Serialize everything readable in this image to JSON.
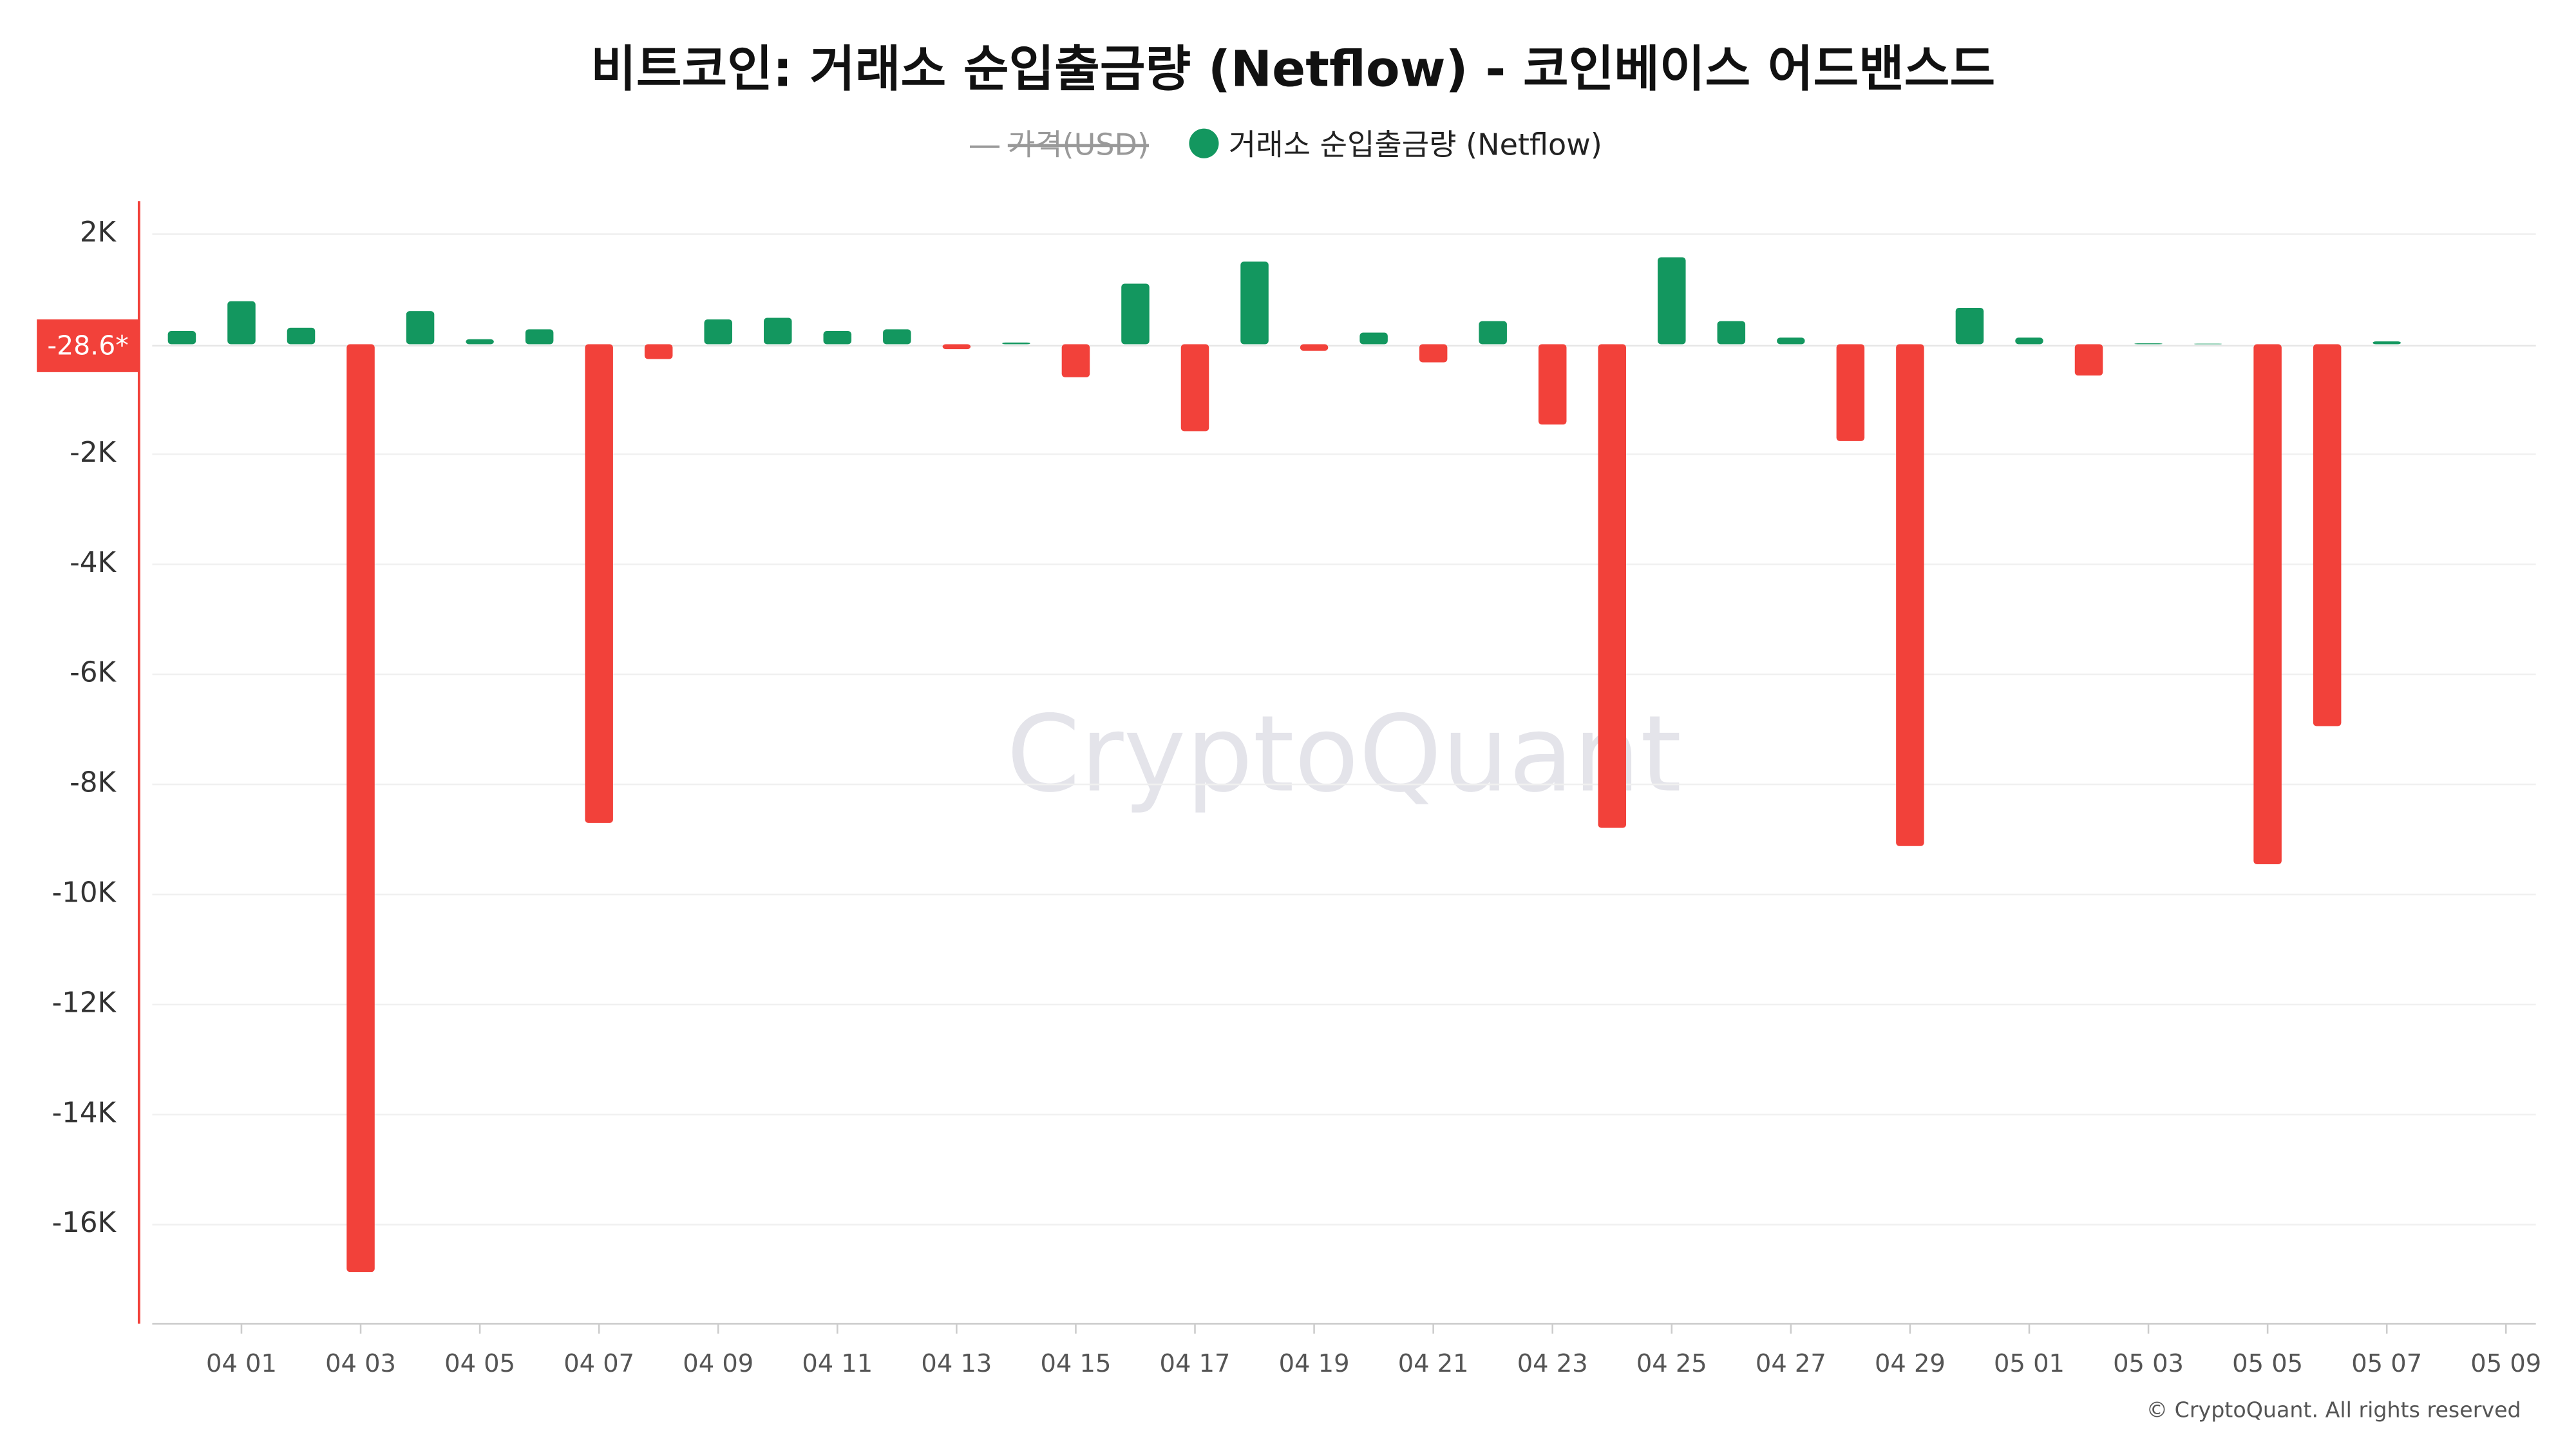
{
  "chart_data": {
    "type": "bar",
    "title": "비트코인: 거래소 순입출금량 (Netflow) - 코인베이스 어드밴스드",
    "hidden_series": [
      {
        "name": "가격(USD)"
      }
    ],
    "categories": [
      null,
      "04 01",
      null,
      "04 03",
      null,
      "04 05",
      null,
      "04 07",
      null,
      "04 09",
      null,
      "04 11",
      null,
      "04 13",
      null,
      "04 15",
      null,
      "04 17",
      null,
      "04 19",
      null,
      "04 21",
      null,
      "04 23",
      null,
      "04 25",
      null,
      "04 27",
      null,
      "04 29",
      null,
      "05 01",
      null,
      "05 03",
      null,
      "05 05",
      null,
      "05 07",
      null,
      "05 09"
    ],
    "series": [
      {
        "name": "거래소 순입출금량 (Netflow)",
        "color": "#13975f",
        "negative_color": "#f2413a",
        "values": [
          240,
          780,
          300,
          -16860,
          600,
          90,
          270,
          -8700,
          -270,
          450,
          480,
          240,
          270,
          -90,
          30,
          -600,
          1100,
          -1580,
          1500,
          -120,
          210,
          -330,
          420,
          -1460,
          -8790,
          1580,
          420,
          120,
          -1760,
          -9120,
          660,
          120,
          -570,
          15,
          10,
          -9450,
          -6940,
          50,
          null,
          null
        ]
      }
    ],
    "ylim": [
      -17800,
      2600
    ],
    "yticks": [
      {
        "value": 2000,
        "label": "2K"
      },
      {
        "value": -2000,
        "label": "-2K"
      },
      {
        "value": -4000,
        "label": "-4K"
      },
      {
        "value": -6000,
        "label": "-6K"
      },
      {
        "value": -8000,
        "label": "-8K"
      },
      {
        "value": -10000,
        "label": "-10K"
      },
      {
        "value": -12000,
        "label": "-12K"
      },
      {
        "value": -14000,
        "label": "-14K"
      },
      {
        "value": -16000,
        "label": "-16K"
      }
    ],
    "grid": true,
    "current_value": {
      "value": -28.6,
      "label": "-28.6*"
    },
    "watermark": "CryptoQuant",
    "copyright": "© CryptoQuant. All rights reserved"
  }
}
